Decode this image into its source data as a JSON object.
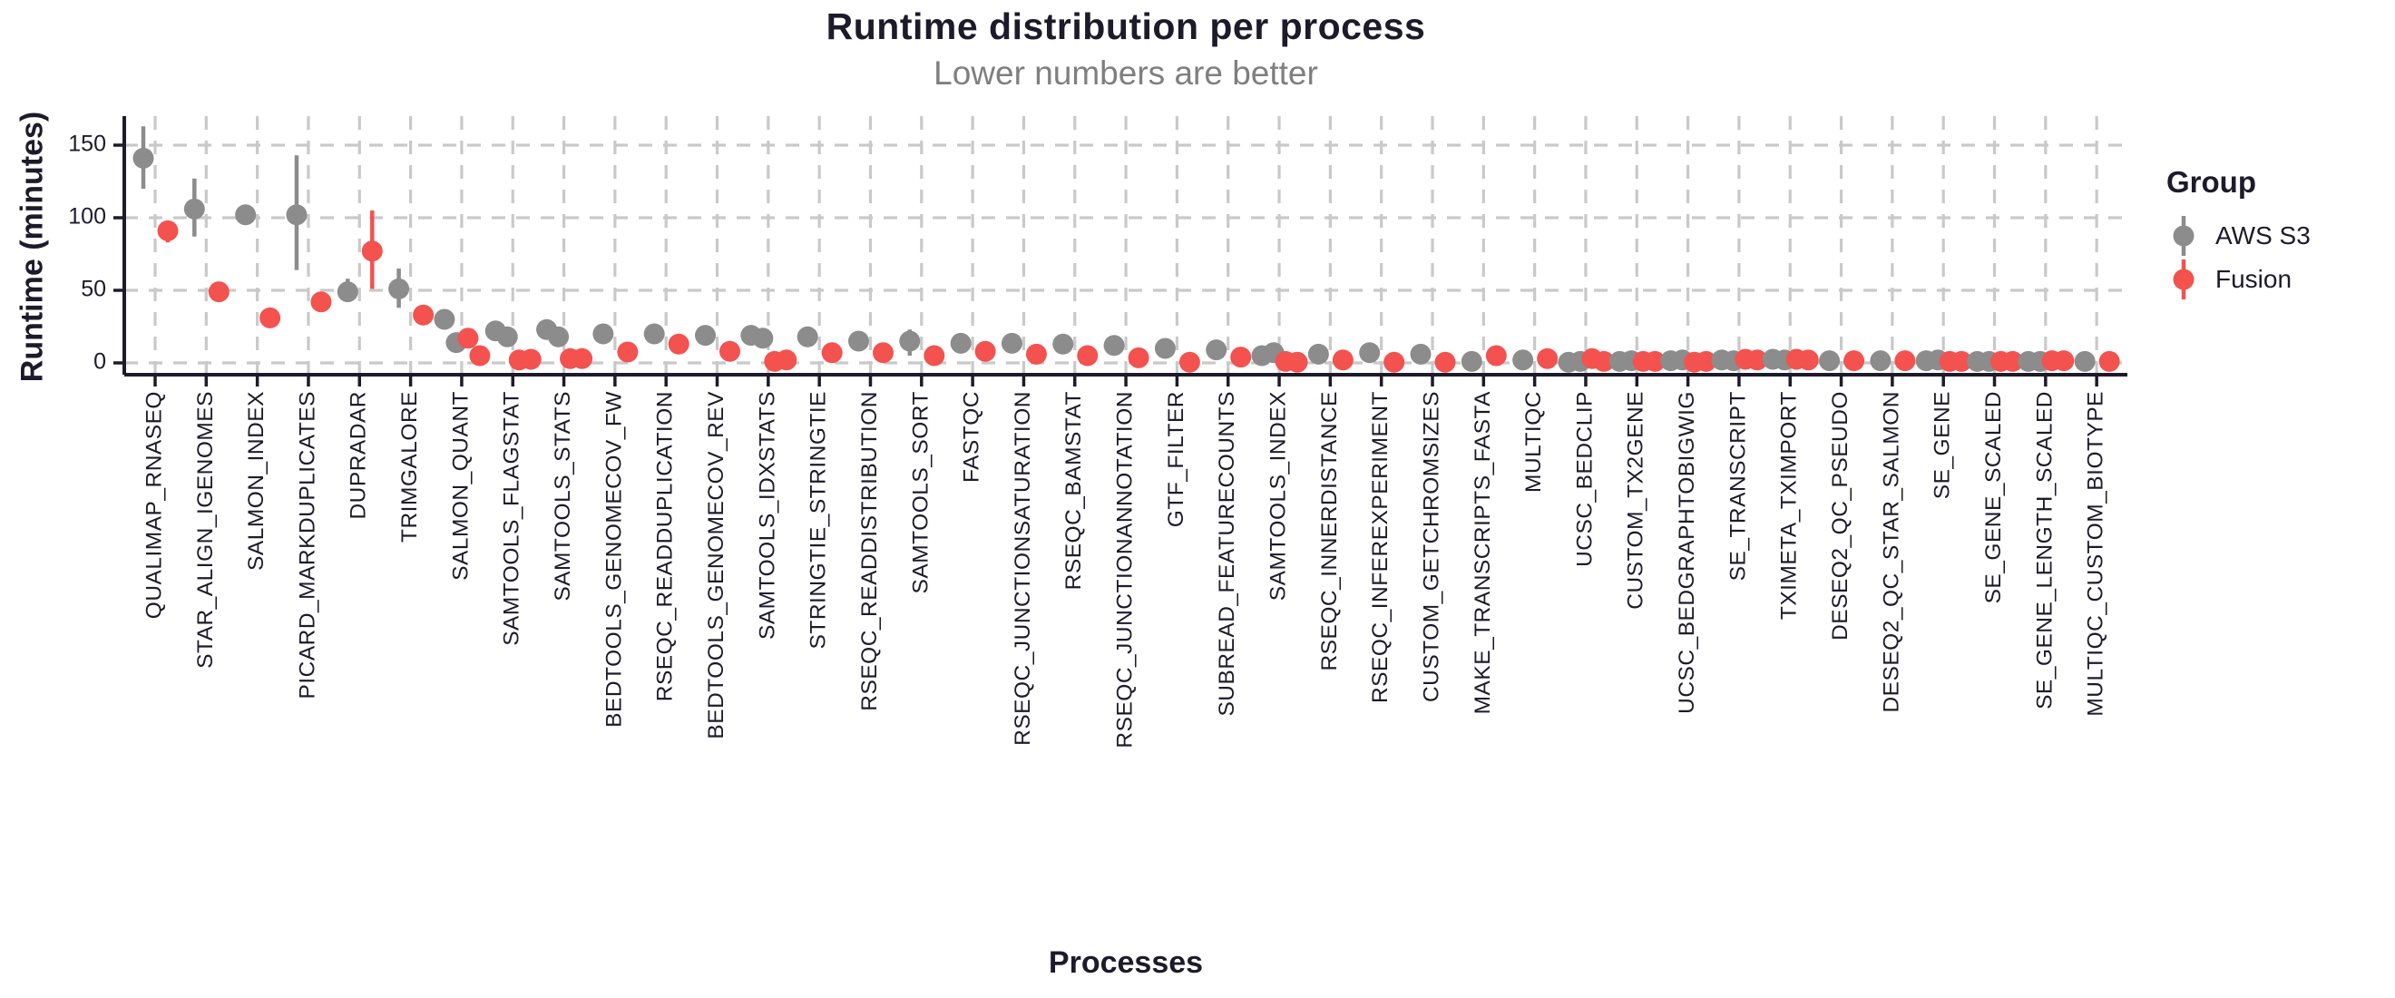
{
  "title": "Runtime distribution per process",
  "subtitle": "Lower numbers are better",
  "x_axis_label": "Processes",
  "y_axis_label": "Runtime (minutes)",
  "legend": {
    "title": "Group",
    "items": [
      {
        "label": "AWS S3",
        "color": "#8c8c8c"
      },
      {
        "label": "Fusion",
        "color": "#f3524f"
      }
    ]
  },
  "colors": {
    "aws_s3": "#8c8c8c",
    "fusion": "#f3524f",
    "text": "#1d1b2a",
    "subtitle_gray": "#7f7f7f",
    "grid": "#c9c9c9"
  },
  "chart_data": {
    "type": "scatter",
    "title": "Runtime distribution per process",
    "subtitle": "Lower numbers are better",
    "xlabel": "Processes",
    "ylabel": "Runtime (minutes)",
    "ylim": [
      -8,
      170
    ],
    "yticks": [
      0,
      50,
      100,
      150
    ],
    "ytick_labels": [
      "0",
      "50",
      "100",
      "150"
    ],
    "grid": true,
    "legend_position": "right",
    "series_names": [
      "AWS S3",
      "Fusion"
    ],
    "units": "minutes",
    "values": [
      {
        "process": "QUALIMAP_RNASEQ",
        "aws_s3": [
          141
        ],
        "aws_s3_range": [
          120,
          163
        ],
        "fusion": [
          91
        ],
        "fusion_range": [
          83,
          97
        ]
      },
      {
        "process": "STAR_ALIGN_IGENOMES",
        "aws_s3": [
          106
        ],
        "aws_s3_range": [
          87,
          127
        ],
        "fusion": [
          49
        ],
        "fusion_range": null
      },
      {
        "process": "SALMON_INDEX",
        "aws_s3": [
          102
        ],
        "aws_s3_range": null,
        "fusion": [
          31
        ],
        "fusion_range": null
      },
      {
        "process": "PICARD_MARKDUPLICATES",
        "aws_s3": [
          102
        ],
        "aws_s3_range": [
          64,
          143
        ],
        "fusion": [
          42
        ],
        "fusion_range": null
      },
      {
        "process": "DUPRADAR",
        "aws_s3": [
          49
        ],
        "aws_s3_range": [
          42,
          58
        ],
        "fusion": [
          77
        ],
        "fusion_range": [
          51,
          105
        ]
      },
      {
        "process": "TRIMGALORE",
        "aws_s3": [
          51
        ],
        "aws_s3_range": [
          38,
          65
        ],
        "fusion": [
          33
        ],
        "fusion_range": null
      },
      {
        "process": "SALMON_QUANT",
        "aws_s3": [
          30,
          14
        ],
        "aws_s3_range": null,
        "fusion": [
          17,
          5
        ],
        "fusion_range": null
      },
      {
        "process": "SAMTOOLS_FLAGSTAT",
        "aws_s3": [
          22,
          18
        ],
        "aws_s3_range": null,
        "fusion": [
          2,
          2.5
        ],
        "fusion_range": null
      },
      {
        "process": "SAMTOOLS_STATS",
        "aws_s3": [
          23,
          18
        ],
        "aws_s3_range": null,
        "fusion": [
          3,
          3
        ],
        "fusion_range": null
      },
      {
        "process": "BEDTOOLS_GENOMECOV_FW",
        "aws_s3": [
          20
        ],
        "aws_s3_range": null,
        "fusion": [
          7.5
        ],
        "fusion_range": null
      },
      {
        "process": "RSEQC_READDUPLICATION",
        "aws_s3": [
          20
        ],
        "aws_s3_range": null,
        "fusion": [
          13
        ],
        "fusion_range": null
      },
      {
        "process": "BEDTOOLS_GENOMECOV_REV",
        "aws_s3": [
          19
        ],
        "aws_s3_range": null,
        "fusion": [
          8
        ],
        "fusion_range": null
      },
      {
        "process": "SAMTOOLS_IDXSTATS",
        "aws_s3": [
          19,
          17
        ],
        "aws_s3_range": null,
        "fusion": [
          1,
          2
        ],
        "fusion_range": null
      },
      {
        "process": "STRINGTIE_STRINGTIE",
        "aws_s3": [
          18
        ],
        "aws_s3_range": null,
        "fusion": [
          7
        ],
        "fusion_range": null
      },
      {
        "process": "RSEQC_READDISTRIBUTION",
        "aws_s3": [
          15
        ],
        "aws_s3_range": null,
        "fusion": [
          7
        ],
        "fusion_range": null
      },
      {
        "process": "SAMTOOLS_SORT",
        "aws_s3": [
          15
        ],
        "aws_s3_range": [
          5,
          23
        ],
        "fusion": [
          5
        ],
        "fusion_range": null
      },
      {
        "process": "FASTQC",
        "aws_s3": [
          13.5
        ],
        "aws_s3_range": null,
        "fusion": [
          8
        ],
        "fusion_range": null
      },
      {
        "process": "RSEQC_JUNCTIONSATURATION",
        "aws_s3": [
          13.5
        ],
        "aws_s3_range": null,
        "fusion": [
          6
        ],
        "fusion_range": null
      },
      {
        "process": "RSEQC_BAMSTAT",
        "aws_s3": [
          13
        ],
        "aws_s3_range": null,
        "fusion": [
          5
        ],
        "fusion_range": null
      },
      {
        "process": "RSEQC_JUNCTIONANNOTATION",
        "aws_s3": [
          12
        ],
        "aws_s3_range": null,
        "fusion": [
          3.5
        ],
        "fusion_range": null
      },
      {
        "process": "GTF_FILTER",
        "aws_s3": [
          10
        ],
        "aws_s3_range": null,
        "fusion": [
          0.5
        ],
        "fusion_range": null
      },
      {
        "process": "SUBREAD_FEATURECOUNTS",
        "aws_s3": [
          9
        ],
        "aws_s3_range": null,
        "fusion": [
          4
        ],
        "fusion_range": null
      },
      {
        "process": "SAMTOOLS_INDEX",
        "aws_s3": [
          5,
          7
        ],
        "aws_s3_range": null,
        "fusion": [
          1,
          0.5
        ],
        "fusion_range": null
      },
      {
        "process": "RSEQC_INNERDISTANCE",
        "aws_s3": [
          6
        ],
        "aws_s3_range": null,
        "fusion": [
          2
        ],
        "fusion_range": null
      },
      {
        "process": "RSEQC_INFEREXPERIMENT",
        "aws_s3": [
          7
        ],
        "aws_s3_range": null,
        "fusion": [
          0.5
        ],
        "fusion_range": null
      },
      {
        "process": "CUSTOM_GETCHROMSIZES",
        "aws_s3": [
          6
        ],
        "aws_s3_range": null,
        "fusion": [
          0.5
        ],
        "fusion_range": null
      },
      {
        "process": "MAKE_TRANSCRIPTS_FASTA",
        "aws_s3": [
          1
        ],
        "aws_s3_range": null,
        "fusion": [
          5
        ],
        "fusion_range": null
      },
      {
        "process": "MULTIQC",
        "aws_s3": [
          2
        ],
        "aws_s3_range": null,
        "fusion": [
          3
        ],
        "fusion_range": null
      },
      {
        "process": "UCSC_BEDCLIP",
        "aws_s3": [
          0.5,
          1
        ],
        "aws_s3_range": null,
        "fusion": [
          3,
          1
        ],
        "fusion_range": null
      },
      {
        "process": "CUSTOM_TX2GENE",
        "aws_s3": [
          1,
          1.5
        ],
        "aws_s3_range": null,
        "fusion": [
          1,
          1
        ],
        "fusion_range": null
      },
      {
        "process": "UCSC_BEDGRAPHTOBIGWIG",
        "aws_s3": [
          1.5,
          2
        ],
        "aws_s3_range": null,
        "fusion": [
          0.5,
          1
        ],
        "fusion_range": null
      },
      {
        "process": "SE_TRANSCRIPT",
        "aws_s3": [
          2,
          1.5
        ],
        "aws_s3_range": null,
        "fusion": [
          2.5,
          2
        ],
        "fusion_range": null
      },
      {
        "process": "TXIMETA_TXIMPORT",
        "aws_s3": [
          2.5,
          2
        ],
        "aws_s3_range": null,
        "fusion": [
          2.5,
          2
        ],
        "fusion_range": null
      },
      {
        "process": "DESEQ2_QC_PSEUDO",
        "aws_s3": [
          1.5
        ],
        "aws_s3_range": null,
        "fusion": [
          1.5
        ],
        "fusion_range": null
      },
      {
        "process": "DESEQ2_QC_STAR_SALMON",
        "aws_s3": [
          1.5
        ],
        "aws_s3_range": null,
        "fusion": [
          1.5
        ],
        "fusion_range": null
      },
      {
        "process": "SE_GENE",
        "aws_s3": [
          1.5,
          2
        ],
        "aws_s3_range": null,
        "fusion": [
          1,
          1
        ],
        "fusion_range": null
      },
      {
        "process": "SE_GENE_SCALED",
        "aws_s3": [
          1,
          1
        ],
        "aws_s3_range": null,
        "fusion": [
          1,
          1
        ],
        "fusion_range": null
      },
      {
        "process": "SE_GENE_LENGTH_SCALED",
        "aws_s3": [
          1,
          1
        ],
        "aws_s3_range": null,
        "fusion": [
          1.5,
          1.5
        ],
        "fusion_range": null
      },
      {
        "process": "MULTIQC_CUSTOM_BIOTYPE",
        "aws_s3": [
          1
        ],
        "aws_s3_range": null,
        "fusion": [
          1
        ],
        "fusion_range": null
      }
    ]
  }
}
